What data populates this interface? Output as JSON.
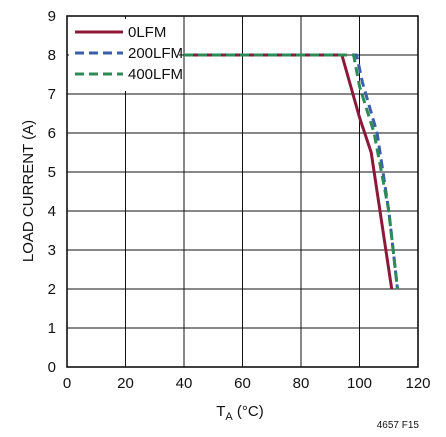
{
  "chart_data": {
    "type": "line",
    "xlabel": "T",
    "xlabel_sub": "A",
    "xlabel_unit": " (°C)",
    "ylabel": "LOAD CURRENT (A)",
    "xlim": [
      0,
      120
    ],
    "ylim": [
      0,
      9
    ],
    "x_ticks": [
      "0",
      "20",
      "40",
      "60",
      "80",
      "100",
      "120"
    ],
    "y_ticks": [
      "0",
      "1",
      "2",
      "3",
      "4",
      "5",
      "6",
      "7",
      "8",
      "9"
    ],
    "grid": true,
    "legend_placement": "top-left",
    "figure_label": "4657 F15",
    "series": [
      {
        "name": "0LFM",
        "color": "#8b1a3a",
        "dash": "solid",
        "x": [
          40,
          94,
          100,
          104,
          107,
          111
        ],
        "y": [
          8,
          8,
          6.4,
          5.5,
          4,
          2
        ]
      },
      {
        "name": "200LFM",
        "color": "#3a5ea8",
        "dash": "dashed",
        "x": [
          40,
          99,
          101,
          106,
          110,
          113
        ],
        "y": [
          8,
          8,
          7.3,
          6,
          4,
          2
        ]
      },
      {
        "name": "400LFM",
        "color": "#2e8b57",
        "dash": "dashed",
        "x": [
          40,
          98,
          100,
          105,
          110,
          113
        ],
        "y": [
          8,
          8,
          7.2,
          6,
          4,
          2
        ]
      }
    ]
  }
}
